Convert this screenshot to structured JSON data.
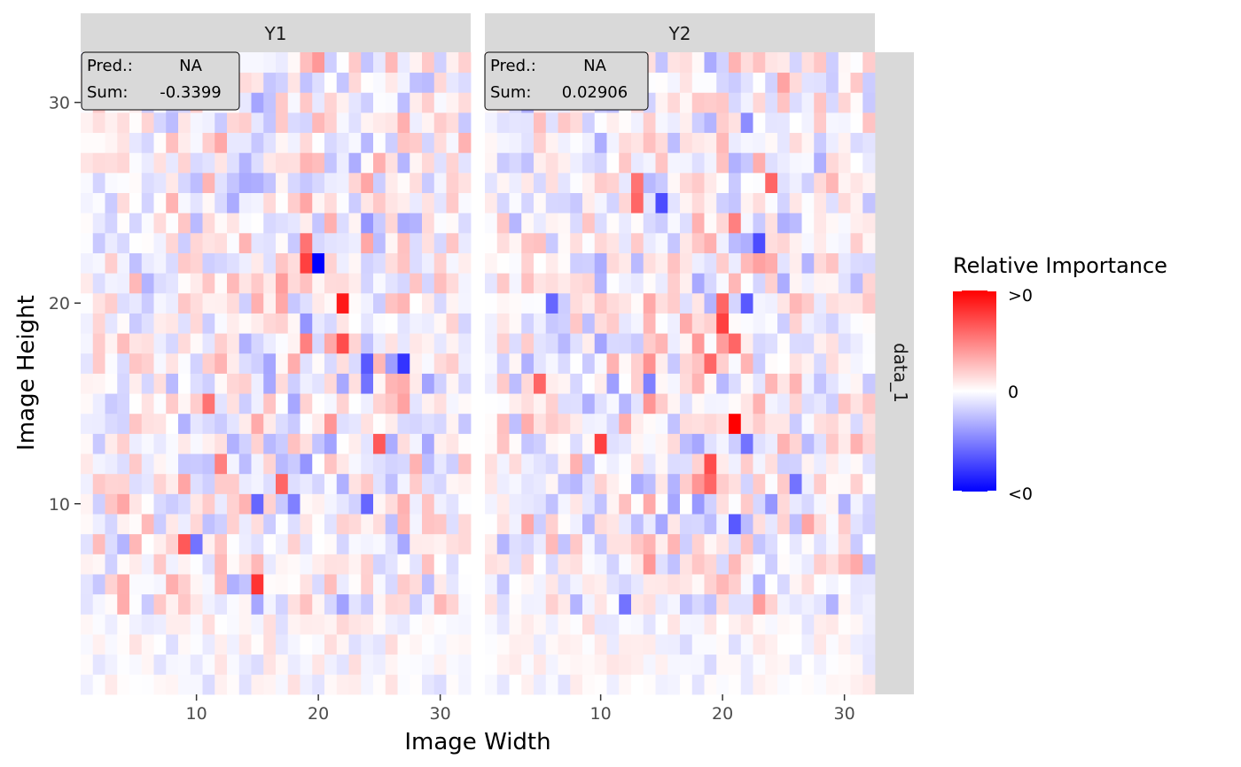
{
  "chart_data": {
    "type": "heatmap",
    "xlabel": "Image Width",
    "ylabel": "Image Height",
    "x_ticks": [
      10,
      20,
      30
    ],
    "y_ticks": [
      10,
      20,
      30
    ],
    "x_range": [
      0.5,
      32.5
    ],
    "y_range": [
      0.5,
      32.5
    ],
    "facet_row_label": "data_1",
    "legend": {
      "title": "Relative Importance",
      "labels": [
        ">0",
        "0",
        "<0"
      ],
      "position": "right",
      "colors": {
        "high": "#ff0000",
        "mid": "#ffffff",
        "low": "#0000ff"
      }
    },
    "panels": [
      {
        "name": "Y1",
        "pred_label": "Pred.:",
        "pred_value": "NA",
        "sum_label": "Sum:",
        "sum_value": "-0.3399",
        "notable_cells": [
          {
            "x": 20,
            "y": 22,
            "value": -1.0
          },
          {
            "x": 19,
            "y": 22,
            "value": 0.75
          },
          {
            "x": 19,
            "y": 23,
            "value": 0.55
          },
          {
            "x": 22,
            "y": 20,
            "value": 0.9
          },
          {
            "x": 22,
            "y": 18,
            "value": 0.7
          },
          {
            "x": 27,
            "y": 17,
            "value": -0.8
          },
          {
            "x": 24,
            "y": 17,
            "value": -0.65
          },
          {
            "x": 24,
            "y": 16,
            "value": -0.55
          },
          {
            "x": 15,
            "y": 6,
            "value": 0.8
          },
          {
            "x": 9,
            "y": 8,
            "value": 0.65
          },
          {
            "x": 10,
            "y": 8,
            "value": -0.55
          },
          {
            "x": 25,
            "y": 13,
            "value": 0.65
          },
          {
            "x": 17,
            "y": 11,
            "value": 0.6
          },
          {
            "x": 19,
            "y": 18,
            "value": 0.5
          },
          {
            "x": 15,
            "y": 10,
            "value": -0.6
          },
          {
            "x": 18,
            "y": 10,
            "value": -0.5
          },
          {
            "x": 24,
            "y": 10,
            "value": -0.6
          },
          {
            "x": 11,
            "y": 15,
            "value": 0.55
          },
          {
            "x": 12,
            "y": 12,
            "value": 0.5
          }
        ]
      },
      {
        "name": "Y2",
        "pred_label": "Pred.:",
        "pred_value": "NA",
        "sum_label": "Sum:",
        "sum_value": "0.02906",
        "notable_cells": [
          {
            "x": 21,
            "y": 14,
            "value": 1.0
          },
          {
            "x": 20,
            "y": 19,
            "value": 0.75
          },
          {
            "x": 20,
            "y": 20,
            "value": 0.6
          },
          {
            "x": 19,
            "y": 12,
            "value": 0.7
          },
          {
            "x": 19,
            "y": 11,
            "value": 0.6
          },
          {
            "x": 19,
            "y": 17,
            "value": 0.6
          },
          {
            "x": 21,
            "y": 18,
            "value": 0.6
          },
          {
            "x": 10,
            "y": 13,
            "value": 0.75
          },
          {
            "x": 5,
            "y": 16,
            "value": 0.6
          },
          {
            "x": 13,
            "y": 25,
            "value": 0.6
          },
          {
            "x": 13,
            "y": 26,
            "value": 0.55
          },
          {
            "x": 24,
            "y": 26,
            "value": 0.6
          },
          {
            "x": 21,
            "y": 24,
            "value": 0.5
          },
          {
            "x": 15,
            "y": 25,
            "value": -0.7
          },
          {
            "x": 23,
            "y": 23,
            "value": -0.7
          },
          {
            "x": 22,
            "y": 20,
            "value": -0.65
          },
          {
            "x": 21,
            "y": 9,
            "value": -0.65
          },
          {
            "x": 6,
            "y": 20,
            "value": -0.6
          },
          {
            "x": 12,
            "y": 5,
            "value": -0.55
          },
          {
            "x": 22,
            "y": 13,
            "value": -0.55
          },
          {
            "x": 26,
            "y": 11,
            "value": -0.55
          },
          {
            "x": 14,
            "y": 16,
            "value": -0.5
          }
        ]
      }
    ]
  }
}
